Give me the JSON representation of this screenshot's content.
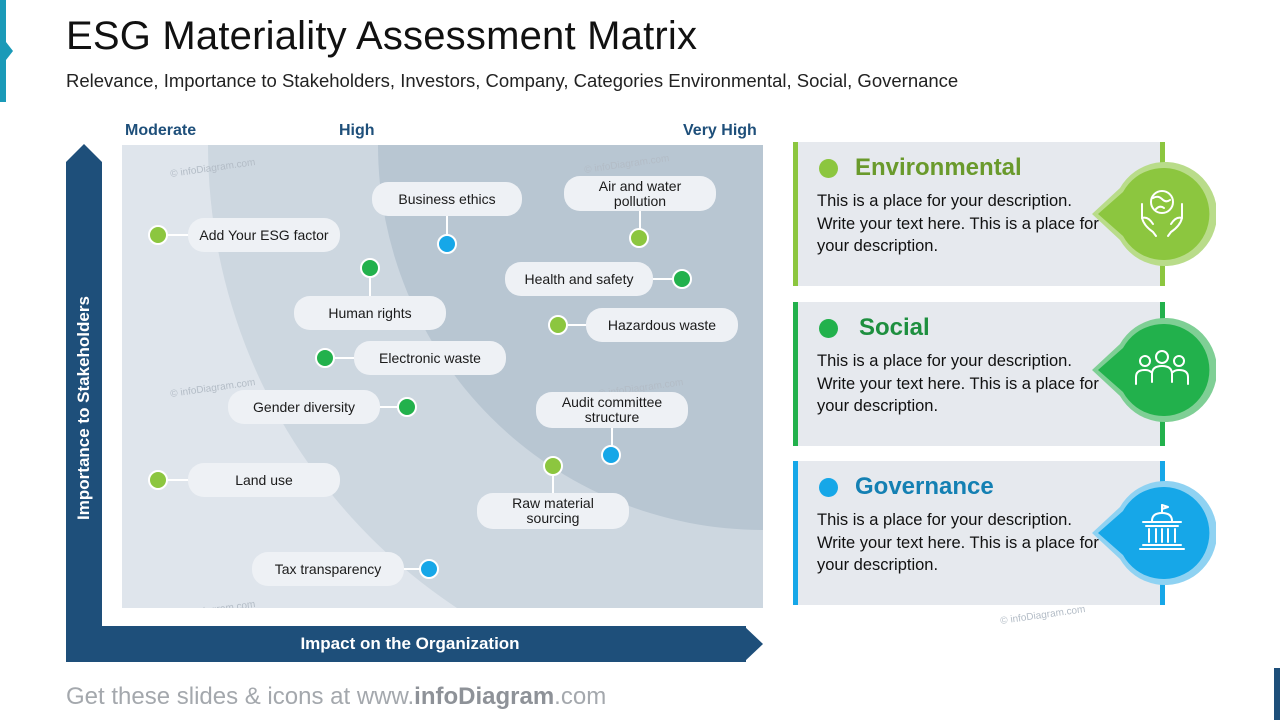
{
  "title": "ESG Materiality Assessment Matrix",
  "subtitle": "Relevance, Importance  to Stakeholders, Investors, Company, Categories Environmental, Social, Governance",
  "columns": {
    "moderate": "Moderate",
    "high": "High",
    "very_high": "Very High"
  },
  "axes": {
    "y": "Importance to Stakeholders",
    "x": "Impact on the Organization"
  },
  "colors": {
    "environmental": "#8cc63f",
    "social": "#22b14c",
    "governance": "#16a7e8",
    "axis": "#1e4f7a"
  },
  "factors": [
    {
      "label": "Add Your ESG factor",
      "category": "environmental"
    },
    {
      "label": "Business ethics",
      "category": "governance"
    },
    {
      "label": "Air and water pollution",
      "category": "environmental"
    },
    {
      "label": "Human rights",
      "category": "social"
    },
    {
      "label": "Health and safety",
      "category": "social"
    },
    {
      "label": "Hazardous waste",
      "category": "environmental"
    },
    {
      "label": "Electronic waste",
      "category": "social"
    },
    {
      "label": "Gender diversity",
      "category": "social"
    },
    {
      "label": "Audit committee structure",
      "category": "governance"
    },
    {
      "label": "Land use",
      "category": "environmental"
    },
    {
      "label": "Raw material sourcing",
      "category": "environmental"
    },
    {
      "label": "Tax transparency",
      "category": "governance"
    }
  ],
  "cards": [
    {
      "title": "Environmental",
      "description": "This is a place for your description. Write your text here. This is a place for your description.",
      "icon": "globe-hands-icon"
    },
    {
      "title": "Social",
      "description": "This is a place for your description. Write your text here. This is a place for your description.",
      "icon": "people-group-icon"
    },
    {
      "title": "Governance",
      "description": "This is a place for your description. Write your text here. This is a place for your description.",
      "icon": "government-building-icon"
    }
  ],
  "watermark": "© infoDiagram.com",
  "footer": {
    "prefix": "Get these slides & icons at www.",
    "brand": "infoDiagram",
    "suffix": ".com"
  }
}
